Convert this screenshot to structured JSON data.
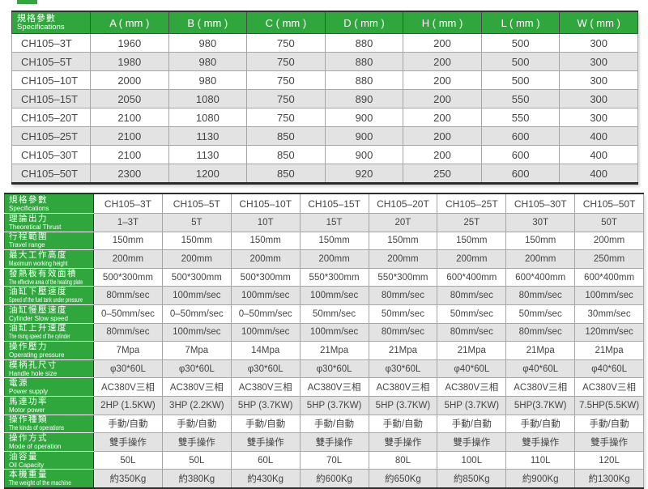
{
  "colors": {
    "green": "#2fa73d",
    "row_alt": "#e3e3e3",
    "border_dark": "#2d2d2d",
    "text": "#454545"
  },
  "top_table": {
    "header_zh": "規格參數",
    "header_en": "Specifications",
    "columns": [
      "A ( mm )",
      "B ( mm )",
      "C ( mm )",
      "D ( mm )",
      "H ( mm )",
      "L ( mm )",
      "W ( mm )"
    ],
    "rows": [
      {
        "model": "CH105–3T",
        "values": [
          "1960",
          "980",
          "750",
          "880",
          "200",
          "500",
          "300"
        ]
      },
      {
        "model": "CH105–5T",
        "values": [
          "1980",
          "980",
          "750",
          "880",
          "200",
          "500",
          "300"
        ]
      },
      {
        "model": "CH105–10T",
        "values": [
          "2000",
          "980",
          "750",
          "880",
          "200",
          "500",
          "300"
        ]
      },
      {
        "model": "CH105–15T",
        "values": [
          "2050",
          "1080",
          "750",
          "890",
          "200",
          "550",
          "300"
        ]
      },
      {
        "model": "CH105–20T",
        "values": [
          "2100",
          "1080",
          "750",
          "900",
          "200",
          "550",
          "300"
        ]
      },
      {
        "model": "CH105–25T",
        "values": [
          "2100",
          "1130",
          "850",
          "900",
          "200",
          "600",
          "400"
        ]
      },
      {
        "model": "CH105–30T",
        "values": [
          "2100",
          "1130",
          "850",
          "900",
          "200",
          "600",
          "400"
        ]
      },
      {
        "model": "CH105–50T",
        "values": [
          "2300",
          "1200",
          "850",
          "920",
          "250",
          "600",
          "400"
        ]
      }
    ]
  },
  "spec_table": {
    "header_zh": "規格參數",
    "header_en": "Specifications",
    "models": [
      "CH105–3T",
      "CH105–5T",
      "CH105–10T",
      "CH105–15T",
      "CH105–20T",
      "CH105–25T",
      "CH105–30T",
      "CH105–50T"
    ],
    "rows": [
      {
        "zh": "理論出力",
        "en": "Theoretical Thrust",
        "values": [
          "1–3T",
          "5T",
          "10T",
          "15T",
          "20T",
          "25T",
          "30T",
          "50T"
        ]
      },
      {
        "zh": "行程範圍",
        "en": "Travel range",
        "values": [
          "150mm",
          "150mm",
          "150mm",
          "150mm",
          "150mm",
          "150mm",
          "150mm",
          "200mm"
        ]
      },
      {
        "zh": "最大工作高度",
        "en": "Maximum working height",
        "values": [
          "200mm",
          "200mm",
          "200mm",
          "200mm",
          "200mm",
          "200mm",
          "200mm",
          "250mm"
        ]
      },
      {
        "zh": "發熱板有效面積",
        "en": "The effective area of the heating plate",
        "values": [
          "500*300mm",
          "500*300mm",
          "500*300mm",
          "550*300mm",
          "550*300mm",
          "600*400mm",
          "600*400mm",
          "600*400mm"
        ]
      },
      {
        "zh": "油缸下壓速度",
        "en": "Speed of the fuel tank under pressure",
        "values": [
          "80mm/sec",
          "100mm/sec",
          "100mm/sec",
          "100mm/sec",
          "80mm/sec",
          "80mm/sec",
          "80mm/sec",
          "100mm/sec"
        ]
      },
      {
        "zh": "油缸慢壓速度",
        "en": "Cylinder Slow speed",
        "values": [
          "0–50mm/sec",
          "0–50mm/sec",
          "0–50mm/sec",
          "50mm/sec",
          "50mm/sec",
          "50mm/sec",
          "50mm/sec",
          "30mm/sec"
        ]
      },
      {
        "zh": "油缸上升速度",
        "en": "The rising speed of the cylinder",
        "values": [
          "80mm/sec",
          "100mm/sec",
          "100mm/sec",
          "100mm/sec",
          "80mm/sec",
          "80mm/sec",
          "80mm/sec",
          "120mm/sec"
        ]
      },
      {
        "zh": "操作壓力",
        "en": "Operating pressure",
        "values": [
          "7Mpa",
          "7Mpa",
          "14Mpa",
          "21Mpa",
          "21Mpa",
          "21Mpa",
          "21Mpa",
          "21Mpa"
        ]
      },
      {
        "zh": "模柄孔尺寸",
        "en": "Handle hole size",
        "values": [
          "φ30*60L",
          "φ30*60L",
          "φ30*60L",
          "φ30*60L",
          "φ30*60L",
          "φ40*60L",
          "φ40*60L",
          "φ40*60L"
        ]
      },
      {
        "zh": "電源",
        "en": "Power supply",
        "values": [
          "AC380V三相",
          "AC380V三相",
          "AC380V三相",
          "AC380V三相",
          "AC380V三相",
          "AC380V三相",
          "AC380V三相",
          "AC380V三相"
        ]
      },
      {
        "zh": "馬達功率",
        "en": "Motor power",
        "values": [
          "2HP (1.5KW)",
          "3HP (2.2KW)",
          "5HP (3.7KW)",
          "5HP (3.7KW)",
          "5HP (3.7KW)",
          "5HP (3.7KW)",
          "5HP(3.7KW)",
          "7.5HP(5.5KW)"
        ]
      },
      {
        "zh": "操作種類",
        "en": "The kinds of operations",
        "values": [
          "手動/自動",
          "手動/自動",
          "手動/自動",
          "手動/自動",
          "手動/自動",
          "手動/自動",
          "手動/自動",
          "手動/自動"
        ]
      },
      {
        "zh": "操作方式",
        "en": "Mode of operation",
        "values": [
          "雙手操作",
          "雙手操作",
          "雙手操作",
          "雙手操作",
          "雙手操作",
          "雙手操作",
          "雙手操作",
          "雙手操作"
        ]
      },
      {
        "zh": "油容量",
        "en": "Oil Capacity",
        "values": [
          "50L",
          "50L",
          "60L",
          "70L",
          "80L",
          "100L",
          "110L",
          "120L"
        ]
      },
      {
        "zh": "本機重量",
        "en": "The weight of the machine",
        "values": [
          "約350Kg",
          "約380Kg",
          "約430Kg",
          "約600Kg",
          "約650Kg",
          "約850Kg",
          "約900Kg",
          "約1300Kg"
        ]
      }
    ]
  }
}
